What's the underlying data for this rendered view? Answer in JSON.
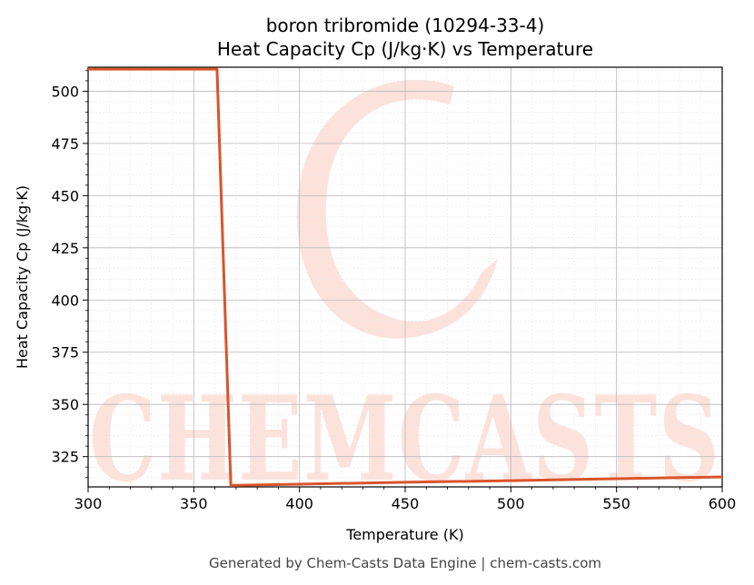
{
  "chart_data": {
    "type": "line",
    "title_line1": "boron tribromide (10294-33-4)",
    "title_line2": "Heat Capacity Cp (J/kg·K) vs Temperature",
    "xlabel": "Temperature (K)",
    "ylabel": "Heat Capacity Cp (J/kg·K)",
    "xlim": [
      300,
      600
    ],
    "ylim": [
      310.5,
      511.5
    ],
    "x_ticks": [
      300,
      350,
      400,
      450,
      500,
      550,
      600
    ],
    "y_ticks": [
      325,
      350,
      375,
      400,
      425,
      450,
      475,
      500
    ],
    "grid": true,
    "series": [
      {
        "color": "#d9542b",
        "x": [
          300,
          361,
          367.5,
          400,
          450,
          500,
          550,
          600
        ],
        "y": [
          510.6,
          510.6,
          311.2,
          311.8,
          312.7,
          313.5,
          314.4,
          315.3
        ]
      }
    ]
  },
  "watermark": {
    "text": "CHEMCASTS",
    "color": "#fde2dc"
  },
  "footer": "Generated by Chem-Casts Data Engine | chem-casts.com"
}
